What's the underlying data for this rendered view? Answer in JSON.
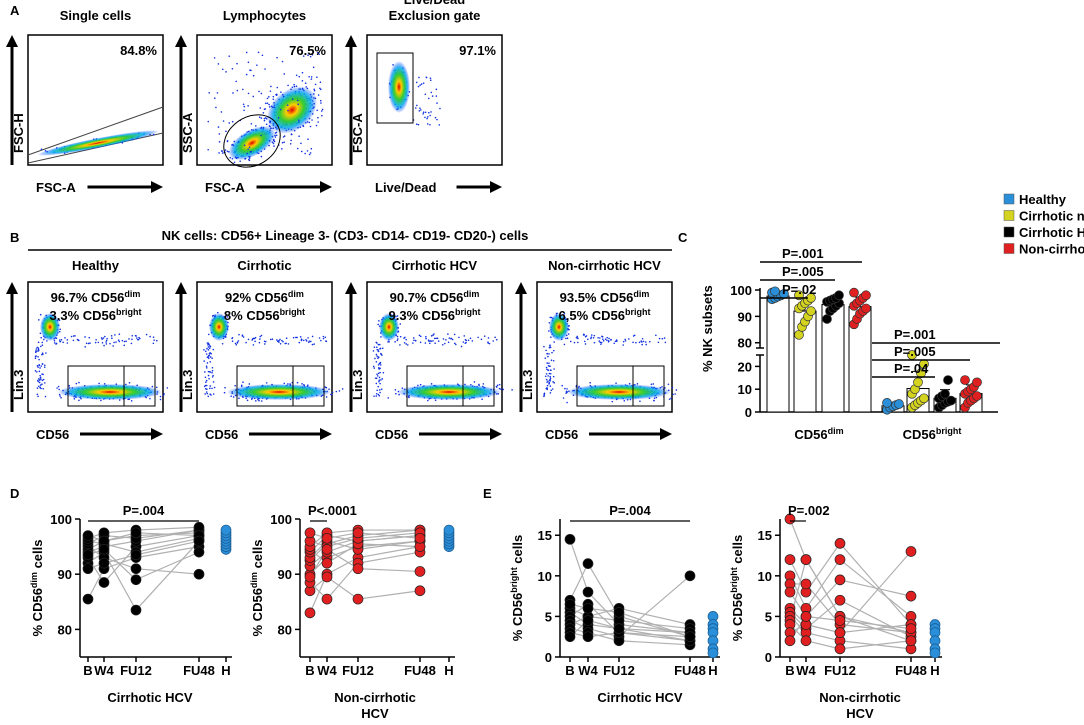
{
  "panel_labels": [
    "A",
    "B",
    "C",
    "D",
    "E"
  ],
  "panel_b_title": "NK cells: CD56+ Lineage 3- (CD3- CD14- CD19- CD20-) cells",
  "chart_data": [
    {
      "type": "flow",
      "title": [
        "Single cells"
      ],
      "xlabel": "FSC-A",
      "ylabel": "FSC-H",
      "gate_labels": [
        [
          "84.8%"
        ]
      ]
    },
    {
      "type": "flow",
      "title": [
        "Lymphocytes"
      ],
      "xlabel": "FSC-A",
      "ylabel": "SSC-A",
      "gate_labels": [
        [
          "76.5%"
        ]
      ]
    },
    {
      "type": "flow",
      "title": [
        "Live/Dead",
        "Exclusion gate"
      ],
      "xlabel": "Live/Dead",
      "ylabel": "FSC-A",
      "gate_labels": [
        [
          "97.1%"
        ]
      ]
    },
    {
      "type": "flow",
      "title": [
        "Healthy"
      ],
      "title_color": "#1f6fc0",
      "xlabel": "CD56",
      "ylabel": "Lin.3",
      "gate_labels": [
        [
          "96.7% CD56",
          "dim"
        ],
        [
          "3.3% CD56",
          "bright"
        ]
      ]
    },
    {
      "type": "flow",
      "title": [
        "Cirrhotic"
      ],
      "title_color": "#c8c400",
      "xlabel": "CD56",
      "ylabel": "Lin.3",
      "gate_labels": [
        [
          "92% CD56",
          "dim"
        ],
        [
          "8% CD56",
          "bright"
        ]
      ]
    },
    {
      "type": "flow",
      "title": [
        "Cirrhotic HCV"
      ],
      "title_color": "#000000",
      "xlabel": "CD56",
      "ylabel": "Lin.3",
      "gate_labels": [
        [
          "90.7% CD56",
          "dim"
        ],
        [
          "9.3% CD56",
          "bright"
        ]
      ]
    },
    {
      "type": "flow",
      "title": [
        "Non-cirrhotic HCV"
      ],
      "title_color": "#e02020",
      "xlabel": "CD56",
      "ylabel": "Lin.3",
      "gate_labels": [
        [
          "93.5% CD56",
          "dim"
        ],
        [
          "6,5% CD56",
          "bright"
        ]
      ]
    },
    {
      "type": "dot",
      "ylabel": [
        "% NK subsets"
      ],
      "categories": [
        [
          "CD56",
          "dim"
        ],
        [
          "CD56",
          "bright"
        ]
      ],
      "ylim": [
        0,
        100
      ],
      "ybreak": [
        25,
        78
      ],
      "yticks": [
        0,
        10,
        20,
        80,
        90,
        100
      ],
      "annotations": [
        "P=.02",
        "P=.005",
        "P=.001",
        "P=.04",
        "P=.005",
        "P=.001"
      ],
      "series": [
        {
          "name": "Healthy",
          "color": "#2a8fd8",
          "values": [
            [
              96.5,
              97,
              97.5,
              98,
              98.5,
              99,
              99.5
            ],
            [
              1,
              2,
              2.5,
              3,
              3.5,
              4
            ]
          ],
          "means": [
            97.7,
            2.7
          ],
          "errors": [
            1,
            1
          ]
        },
        {
          "name": "Cirrhotic non-HCV",
          "color": "#d4d420",
          "values": [
            [
              83,
              86,
              88,
              90,
              92,
              93,
              94,
              95,
              96,
              97,
              98
            ],
            [
              2,
              3,
              4,
              5,
              6,
              8,
              10,
              13,
              17,
              21,
              25
            ]
          ],
          "means": [
            92,
            10.3
          ],
          "errors": [
            5,
            7.5
          ]
        },
        {
          "name": "Cirrhotic HCV",
          "color": "#000000",
          "values": [
            [
              89,
              92,
              93,
              94,
              95,
              95.5,
              96,
              96.5,
              97,
              98
            ],
            [
              2,
              3,
              4,
              4.5,
              5,
              6,
              7,
              8,
              14
            ]
          ],
          "means": [
            94.5,
            6
          ],
          "errors": [
            2.8,
            3.8
          ]
        },
        {
          "name": "Non-cirrhotic HCV",
          "color": "#e02020",
          "values": [
            [
              87,
              89,
              91,
              92,
              93,
              94,
              95,
              96,
              97,
              98,
              99
            ],
            [
              2,
              4,
              5,
              6,
              7,
              8,
              9,
              10,
              11,
              13,
              14
            ]
          ],
          "means": [
            93.7,
            8.1
          ],
          "errors": [
            3.6,
            3.8
          ]
        }
      ]
    },
    {
      "type": "paired",
      "title": [
        "Cirrhotic HCV"
      ],
      "ylabel": [
        "% CD56",
        "dim",
        " cells"
      ],
      "categories": [
        "B",
        "W4",
        "FU12",
        "FU48",
        "H"
      ],
      "color": "#000000",
      "h_color": "#2a8fd8",
      "ylim": [
        75,
        100
      ],
      "yticks": [
        80,
        90,
        100
      ],
      "annotations": [
        "P=.004"
      ],
      "patients": [
        [
          85.5,
          91,
          93,
          95
        ],
        [
          92,
          94,
          83.5,
          96
        ],
        [
          93,
          88.5,
          95,
          97
        ],
        [
          94,
          95,
          96,
          98
        ],
        [
          94.5,
          96,
          97,
          97.5
        ],
        [
          95,
          93,
          91,
          90
        ],
        [
          95.5,
          97,
          96.5,
          98
        ],
        [
          96,
          95.5,
          94,
          96.5
        ],
        [
          96.5,
          97.5,
          98,
          98.5
        ],
        [
          97,
          96,
          97.5,
          97
        ],
        [
          93.5,
          94.5,
          89,
          94
        ],
        [
          91,
          92,
          93.5,
          96
        ]
      ],
      "healthy": [
        94.5,
        95,
        95.5,
        96,
        96.5,
        97,
        97.5,
        98
      ]
    },
    {
      "type": "paired",
      "title": [
        "Non-cirrhotic",
        "HCV"
      ],
      "ylabel": [
        "% CD56",
        "dim",
        " cells"
      ],
      "categories": [
        "B",
        "W4",
        "FU12",
        "FU48",
        "H"
      ],
      "color": "#e02020",
      "h_color": "#2a8fd8",
      "ylim": [
        75,
        100
      ],
      "yticks": [
        80,
        90,
        100
      ],
      "annotations": [
        "P<.0001"
      ],
      "patients": [
        [
          83,
          90,
          93,
          95
        ],
        [
          87,
          89.5,
          85.5,
          87
        ],
        [
          88.5,
          85.5,
          92,
          94
        ],
        [
          90,
          93,
          95,
          96
        ],
        [
          91.5,
          94,
          96,
          97
        ],
        [
          92.5,
          95.5,
          97,
          98
        ],
        [
          93,
          96,
          94.5,
          96
        ],
        [
          94,
          97,
          96,
          97
        ],
        [
          94.5,
          92,
          95.5,
          95
        ],
        [
          95,
          97.5,
          98,
          98
        ],
        [
          96,
          95,
          96.5,
          97.5
        ],
        [
          97.5,
          96.5,
          97.5,
          96.5
        ],
        [
          89.5,
          94.5,
          91,
          90.5
        ]
      ],
      "healthy": [
        95,
        95.5,
        96,
        96.5,
        97,
        97.5,
        98
      ]
    },
    {
      "type": "paired",
      "title": [
        "Cirrhotic HCV"
      ],
      "ylabel": [
        "% CD56",
        "bright",
        " cells"
      ],
      "categories": [
        "B",
        "W4",
        "FU12",
        "FU48",
        "H"
      ],
      "color": "#000000",
      "h_color": "#2a8fd8",
      "ylim": [
        0,
        17
      ],
      "yticks": [
        0,
        5,
        10,
        15
      ],
      "annotations": [
        "P=.004"
      ],
      "patients": [
        [
          14.5,
          8,
          4,
          3
        ],
        [
          7,
          11.5,
          5,
          2.5
        ],
        [
          6,
          5,
          6,
          4
        ],
        [
          5.5,
          4,
          3.5,
          2
        ],
        [
          5,
          6.5,
          3,
          2.5
        ],
        [
          4.5,
          3.5,
          2.5,
          10
        ],
        [
          4,
          5,
          4.5,
          3.5
        ],
        [
          3.5,
          3,
          2,
          1.5
        ],
        [
          3,
          2.5,
          3,
          2
        ],
        [
          2.5,
          4.5,
          3.5,
          3
        ],
        [
          6.5,
          6,
          5.5,
          2.5
        ]
      ],
      "healthy": [
        5,
        4,
        3.5,
        3,
        2,
        1,
        0.5
      ]
    },
    {
      "type": "paired",
      "title": [
        "Non-cirrhotic",
        "HCV"
      ],
      "ylabel": [
        "% CD56",
        "bright",
        " cells"
      ],
      "categories": [
        "B",
        "W4",
        "FU12",
        "FU48",
        "H"
      ],
      "color": "#e02020",
      "h_color": "#2a8fd8",
      "ylim": [
        0,
        17
      ],
      "yticks": [
        0,
        5,
        10,
        15
      ],
      "annotations": [
        "P=.002"
      ],
      "patients": [
        [
          17,
          12,
          5,
          2
        ],
        [
          12,
          8,
          14,
          4
        ],
        [
          10,
          6,
          12,
          5
        ],
        [
          9,
          9,
          4,
          3
        ],
        [
          8,
          5,
          9.5,
          7.5
        ],
        [
          6,
          4,
          3,
          13
        ],
        [
          5.5,
          3.5,
          7,
          2.5
        ],
        [
          5,
          3,
          2,
          1
        ],
        [
          4.5,
          12,
          5,
          3
        ],
        [
          4,
          2,
          1,
          2
        ],
        [
          3,
          4,
          3,
          4
        ],
        [
          2,
          5,
          4.5,
          3.5
        ]
      ],
      "healthy": [
        4,
        3.5,
        3,
        2,
        1,
        0.5
      ]
    }
  ]
}
